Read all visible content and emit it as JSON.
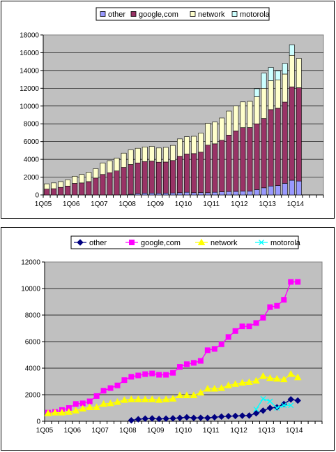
{
  "chart_data": [
    {
      "type": "bar",
      "stacked": true,
      "categories": [
        "1Q05",
        "2Q05",
        "3Q05",
        "4Q05",
        "1Q06",
        "2Q06",
        "3Q06",
        "4Q06",
        "1Q07",
        "2Q07",
        "3Q07",
        "4Q07",
        "1Q08",
        "2Q08",
        "3Q08",
        "4Q08",
        "1Q09",
        "2Q09",
        "3Q09",
        "4Q09",
        "1Q10",
        "2Q10",
        "3Q10",
        "4Q10",
        "1Q11",
        "2Q11",
        "3Q11",
        "4Q11",
        "1Q12",
        "2Q12",
        "3Q12",
        "4Q12",
        "1Q13",
        "2Q13",
        "3Q13",
        "4Q13",
        "1Q14",
        "2Q14",
        "3Q14",
        "4Q14"
      ],
      "x_tick_labels": [
        "1Q05",
        "1Q06",
        "1Q07",
        "1Q08",
        "1Q09",
        "1Q10",
        "1Q11",
        "1Q12",
        "1Q13",
        "1Q14"
      ],
      "series": [
        {
          "name": "other",
          "color": "#9999ff",
          "values": [
            0,
            0,
            0,
            0,
            0,
            0,
            0,
            0,
            0,
            0,
            0,
            0,
            70,
            150,
            200,
            210,
            180,
            200,
            220,
            250,
            300,
            250,
            260,
            250,
            300,
            350,
            380,
            400,
            420,
            430,
            600,
            800,
            1000,
            1050,
            1300,
            1650,
            1560,
            null,
            null,
            null
          ]
        },
        {
          "name": "google,com",
          "color": "#993366",
          "values": [
            650,
            700,
            850,
            1000,
            1300,
            1350,
            1500,
            1900,
            2300,
            2500,
            2700,
            3100,
            3350,
            3450,
            3550,
            3600,
            3500,
            3500,
            3650,
            4100,
            4300,
            4400,
            4550,
            5350,
            5450,
            5800,
            6350,
            6800,
            7150,
            7150,
            7400,
            7800,
            8600,
            8700,
            9150,
            10500,
            10500,
            null,
            null,
            null
          ]
        },
        {
          "name": "network",
          "color": "#ffffcc",
          "values": [
            600,
            650,
            650,
            700,
            800,
            950,
            1050,
            1050,
            1300,
            1350,
            1450,
            1600,
            1650,
            1650,
            1650,
            1650,
            1600,
            1650,
            1700,
            1950,
            1950,
            1950,
            2150,
            2450,
            2450,
            2500,
            2700,
            2800,
            2900,
            2950,
            3050,
            3400,
            3250,
            3200,
            3150,
            3550,
            3300,
            null,
            null,
            null
          ]
        },
        {
          "name": "motorola",
          "color": "#ccffff",
          "values": [
            0,
            0,
            0,
            0,
            0,
            0,
            0,
            0,
            0,
            0,
            0,
            0,
            0,
            0,
            0,
            0,
            0,
            0,
            0,
            0,
            0,
            0,
            0,
            0,
            0,
            0,
            0,
            0,
            0,
            0,
            900,
            1700,
            1500,
            1000,
            1200,
            1200,
            0,
            null,
            null,
            null
          ]
        }
      ],
      "ylim": [
        0,
        18000
      ],
      "yticks": [
        0,
        2000,
        4000,
        6000,
        8000,
        10000,
        12000,
        14000,
        16000,
        18000
      ],
      "grid": true,
      "legend": "top"
    },
    {
      "type": "line",
      "categories": [
        "1Q05",
        "2Q05",
        "3Q05",
        "4Q05",
        "1Q06",
        "2Q06",
        "3Q06",
        "4Q06",
        "1Q07",
        "2Q07",
        "3Q07",
        "4Q07",
        "1Q08",
        "2Q08",
        "3Q08",
        "4Q08",
        "1Q09",
        "2Q09",
        "3Q09",
        "4Q09",
        "1Q10",
        "2Q10",
        "3Q10",
        "4Q10",
        "1Q11",
        "2Q11",
        "3Q11",
        "4Q11",
        "1Q12",
        "2Q12",
        "3Q12",
        "4Q12",
        "1Q13",
        "2Q13",
        "3Q13",
        "4Q13",
        "1Q14",
        "2Q14",
        "3Q14",
        "4Q14"
      ],
      "x_tick_labels": [
        "1Q05",
        "1Q06",
        "1Q07",
        "1Q08",
        "1Q09",
        "1Q10",
        "1Q11",
        "1Q12",
        "1Q13",
        "1Q14"
      ],
      "series": [
        {
          "name": "other",
          "color": "#000080",
          "marker": "diamond",
          "values": [
            null,
            null,
            null,
            null,
            null,
            null,
            null,
            null,
            null,
            null,
            null,
            null,
            70,
            150,
            200,
            210,
            180,
            200,
            220,
            250,
            300,
            250,
            260,
            250,
            300,
            350,
            380,
            400,
            420,
            430,
            600,
            800,
            1000,
            1050,
            1300,
            1650,
            1560,
            null,
            null,
            null
          ]
        },
        {
          "name": "google,com",
          "color": "#ff00ff",
          "marker": "square",
          "values": [
            650,
            700,
            850,
            1000,
            1300,
            1350,
            1500,
            1900,
            2300,
            2500,
            2700,
            3100,
            3350,
            3450,
            3550,
            3600,
            3500,
            3500,
            3650,
            4100,
            4300,
            4400,
            4550,
            5350,
            5450,
            5800,
            6350,
            6800,
            7150,
            7150,
            7400,
            7800,
            8600,
            8700,
            9150,
            10500,
            10500,
            null,
            null,
            null
          ]
        },
        {
          "name": "network",
          "color": "#ffff00",
          "marker": "triangle",
          "values": [
            600,
            650,
            650,
            700,
            800,
            950,
            1050,
            1050,
            1300,
            1350,
            1450,
            1600,
            1650,
            1650,
            1650,
            1650,
            1600,
            1650,
            1700,
            1950,
            1950,
            1950,
            2150,
            2450,
            2450,
            2500,
            2700,
            2800,
            2900,
            2950,
            3050,
            3400,
            3250,
            3200,
            3150,
            3550,
            3300,
            null,
            null,
            null
          ]
        },
        {
          "name": "motorola",
          "color": "#00ffff",
          "marker": "x",
          "values": [
            null,
            null,
            null,
            null,
            null,
            null,
            null,
            null,
            null,
            null,
            null,
            null,
            null,
            null,
            null,
            null,
            null,
            null,
            null,
            null,
            null,
            null,
            null,
            null,
            null,
            null,
            null,
            null,
            null,
            null,
            900,
            1700,
            1500,
            1000,
            1200,
            1200,
            null,
            null,
            null,
            null
          ]
        }
      ],
      "ylim": [
        0,
        12000
      ],
      "yticks": [
        0,
        2000,
        4000,
        6000,
        8000,
        10000,
        12000
      ],
      "grid": true,
      "legend": "top"
    }
  ]
}
